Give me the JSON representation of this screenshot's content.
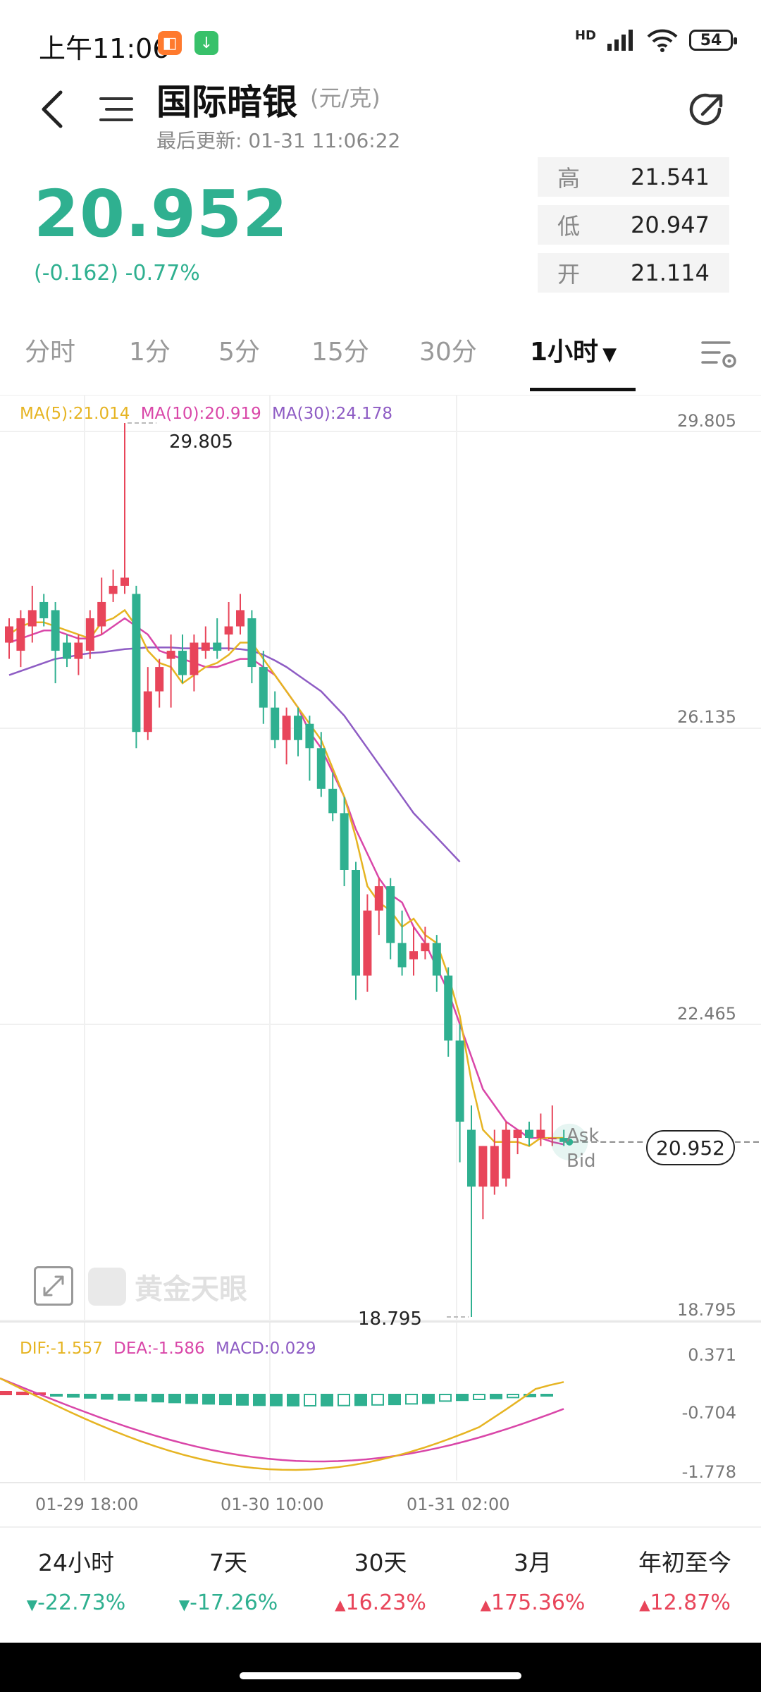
{
  "status_bar": {
    "time": "上午11:06",
    "network": "HD",
    "battery": "54"
  },
  "header": {
    "title": "国际暗银",
    "unit": "(元/克)",
    "last_updated_label": "最后更新: 01-31 11:06:22"
  },
  "quote": {
    "price": "20.952",
    "change": "(-0.162)  -0.77%",
    "high_label": "高",
    "high": "21.541",
    "low_label": "低",
    "low": "20.947",
    "open_label": "开",
    "open": "21.114"
  },
  "tabs": [
    {
      "label": "分时"
    },
    {
      "label": "1分"
    },
    {
      "label": "5分"
    },
    {
      "label": "15分"
    },
    {
      "label": "30分"
    },
    {
      "label": "1小时",
      "active": true
    }
  ],
  "chart_legend": {
    "ma5": "MA(5):21.014",
    "ma10": "MA(10):20.919",
    "ma30": "MA(30):24.178"
  },
  "macd_legend": {
    "dif": "DIF:-1.557",
    "dea": "DEA:-1.586",
    "macd": "MACD:0.029"
  },
  "price_axis": [
    "29.805",
    "26.135",
    "22.465",
    "18.795"
  ],
  "macd_axis": [
    "0.371",
    "-0.704",
    "-1.778"
  ],
  "time_axis": [
    "01-29 18:00",
    "01-30 10:00",
    "01-31 02:00"
  ],
  "annotations": {
    "max_label": "29.805",
    "min_label": "18.795",
    "ask": "Ask",
    "bid": "Bid",
    "current_price_tag": "20.952"
  },
  "watermark": "黄金天眼",
  "colors": {
    "up": "#e8455a",
    "down": "#2fb090",
    "ma5": "#e6b422",
    "ma10": "#d946a8",
    "ma30": "#8e5cc4"
  },
  "chart_data": {
    "type": "candlestick",
    "y_range": [
      18.795,
      29.805
    ],
    "candles": [
      {
        "o": 27.1,
        "h": 27.4,
        "l": 26.9,
        "c": 27.3
      },
      {
        "o": 27.0,
        "h": 27.5,
        "l": 26.8,
        "c": 27.4
      },
      {
        "o": 27.3,
        "h": 27.8,
        "l": 27.1,
        "c": 27.5
      },
      {
        "o": 27.6,
        "h": 27.7,
        "l": 27.3,
        "c": 27.4
      },
      {
        "o": 27.5,
        "h": 27.6,
        "l": 26.6,
        "c": 27.0
      },
      {
        "o": 27.1,
        "h": 27.2,
        "l": 26.8,
        "c": 26.9
      },
      {
        "o": 26.9,
        "h": 27.2,
        "l": 26.7,
        "c": 27.1
      },
      {
        "o": 27.0,
        "h": 27.5,
        "l": 26.9,
        "c": 27.4
      },
      {
        "o": 27.3,
        "h": 27.9,
        "l": 27.2,
        "c": 27.6
      },
      {
        "o": 27.7,
        "h": 28.0,
        "l": 27.6,
        "c": 27.8
      },
      {
        "o": 27.8,
        "h": 29.805,
        "l": 27.7,
        "c": 27.9
      },
      {
        "o": 27.7,
        "h": 27.8,
        "l": 25.8,
        "c": 26.0
      },
      {
        "o": 26.0,
        "h": 26.8,
        "l": 25.9,
        "c": 26.5
      },
      {
        "o": 26.5,
        "h": 26.9,
        "l": 26.3,
        "c": 26.8
      },
      {
        "o": 26.9,
        "h": 27.2,
        "l": 26.3,
        "c": 27.0
      },
      {
        "o": 27.0,
        "h": 27.2,
        "l": 26.6,
        "c": 26.7
      },
      {
        "o": 26.7,
        "h": 27.2,
        "l": 26.5,
        "c": 27.1
      },
      {
        "o": 27.0,
        "h": 27.3,
        "l": 26.9,
        "c": 27.1
      },
      {
        "o": 27.1,
        "h": 27.4,
        "l": 26.9,
        "c": 27.0
      },
      {
        "o": 27.2,
        "h": 27.6,
        "l": 27.0,
        "c": 27.3
      },
      {
        "o": 27.3,
        "h": 27.7,
        "l": 27.2,
        "c": 27.5
      },
      {
        "o": 27.4,
        "h": 27.5,
        "l": 26.6,
        "c": 26.8
      },
      {
        "o": 26.8,
        "h": 27.0,
        "l": 26.1,
        "c": 26.3
      },
      {
        "o": 26.3,
        "h": 26.5,
        "l": 25.8,
        "c": 25.9
      },
      {
        "o": 25.9,
        "h": 26.3,
        "l": 25.6,
        "c": 26.2
      },
      {
        "o": 26.2,
        "h": 26.3,
        "l": 25.7,
        "c": 25.9
      },
      {
        "o": 26.1,
        "h": 26.2,
        "l": 25.4,
        "c": 25.8
      },
      {
        "o": 25.8,
        "h": 26.0,
        "l": 25.2,
        "c": 25.3
      },
      {
        "o": 25.3,
        "h": 25.5,
        "l": 24.9,
        "c": 25.0
      },
      {
        "o": 25.0,
        "h": 25.2,
        "l": 24.1,
        "c": 24.3
      },
      {
        "o": 24.3,
        "h": 24.4,
        "l": 22.7,
        "c": 23.0
      },
      {
        "o": 23.0,
        "h": 24.0,
        "l": 22.8,
        "c": 23.8
      },
      {
        "o": 23.8,
        "h": 24.2,
        "l": 23.5,
        "c": 24.1
      },
      {
        "o": 24.1,
        "h": 24.2,
        "l": 23.2,
        "c": 23.4
      },
      {
        "o": 23.4,
        "h": 23.8,
        "l": 23.0,
        "c": 23.1
      },
      {
        "o": 23.2,
        "h": 23.6,
        "l": 23.0,
        "c": 23.3
      },
      {
        "o": 23.3,
        "h": 23.6,
        "l": 23.2,
        "c": 23.4
      },
      {
        "o": 23.4,
        "h": 23.5,
        "l": 22.8,
        "c": 23.0
      },
      {
        "o": 23.0,
        "h": 23.1,
        "l": 22.0,
        "c": 22.2
      },
      {
        "o": 22.2,
        "h": 22.4,
        "l": 20.7,
        "c": 21.2
      },
      {
        "o": 21.1,
        "h": 21.4,
        "l": 18.795,
        "c": 20.4
      },
      {
        "o": 20.4,
        "h": 20.9,
        "l": 20.0,
        "c": 20.9
      },
      {
        "o": 20.4,
        "h": 21.1,
        "l": 20.3,
        "c": 20.9
      },
      {
        "o": 20.5,
        "h": 21.2,
        "l": 20.4,
        "c": 21.1
      },
      {
        "o": 21.0,
        "h": 21.1,
        "l": 20.8,
        "c": 21.1
      },
      {
        "o": 21.1,
        "h": 21.2,
        "l": 20.9,
        "c": 21.0
      },
      {
        "o": 21.0,
        "h": 21.3,
        "l": 20.9,
        "c": 21.1
      },
      {
        "o": 21.0,
        "h": 21.4,
        "l": 20.9,
        "c": 21.0
      },
      {
        "o": 21.0,
        "h": 21.1,
        "l": 20.9,
        "c": 20.95
      }
    ],
    "ma5": [
      27.2,
      27.3,
      27.35,
      27.35,
      27.3,
      27.25,
      27.2,
      27.15,
      27.35,
      27.4,
      27.5,
      27.3,
      27.0,
      26.85,
      26.8,
      26.6,
      26.7,
      26.8,
      26.85,
      26.95,
      27.1,
      27.1,
      26.9,
      26.7,
      26.5,
      26.3,
      26.1,
      25.9,
      25.55,
      25.2,
      24.7,
      24.1,
      23.9,
      23.8,
      23.6,
      23.7,
      23.5,
      23.4,
      23.0,
      22.5,
      21.7,
      21.1,
      20.95,
      20.95,
      20.95,
      20.9,
      21.0,
      21.0,
      21.0
    ],
    "ma10": [
      27.1,
      27.15,
      27.2,
      27.25,
      27.25,
      27.2,
      27.15,
      27.15,
      27.2,
      27.3,
      27.4,
      27.3,
      27.2,
      27.0,
      26.95,
      26.9,
      26.85,
      26.8,
      26.8,
      26.85,
      26.9,
      26.9,
      26.8,
      26.7,
      26.5,
      26.3,
      26.0,
      25.8,
      25.5,
      25.2,
      24.8,
      24.5,
      24.2,
      24.0,
      23.9,
      23.6,
      23.4,
      23.1,
      22.8,
      22.4,
      22.0,
      21.6,
      21.4,
      21.2,
      21.1,
      21.0,
      21.0,
      20.95,
      20.92
    ],
    "ma30": [
      26.7,
      26.75,
      26.8,
      26.85,
      26.9,
      26.92,
      26.95,
      26.97,
      26.98,
      27.0,
      27.02,
      27.03,
      27.04,
      27.04,
      27.04,
      27.03,
      27.03,
      27.03,
      27.03,
      27.03,
      27.02,
      27.0,
      26.95,
      26.88,
      26.8,
      26.7,
      26.6,
      26.5,
      26.35,
      26.2,
      26.0,
      25.8,
      25.6,
      25.4,
      25.2,
      25.0,
      24.85,
      24.7,
      24.55,
      24.4
    ]
  }
}
